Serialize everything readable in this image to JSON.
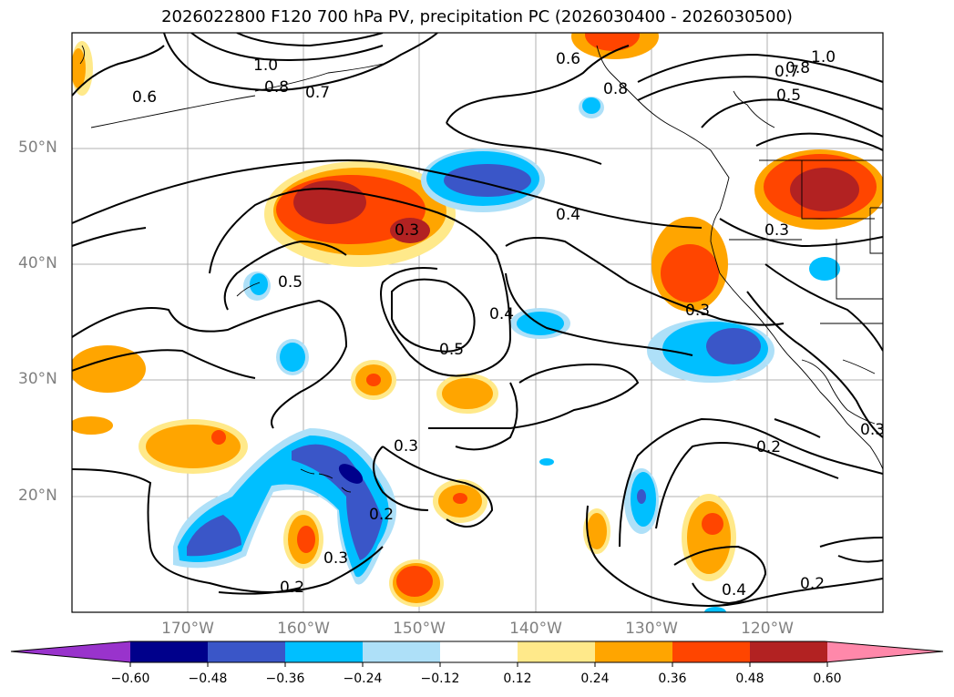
{
  "title": "2026022800 F120 700 hPa PV, precipitation PC (2026030400 - 2026030500)",
  "lat_labels": [
    "50°N",
    "40°N",
    "30°N",
    "20°N"
  ],
  "lon_labels": [
    "170°W",
    "160°W",
    "150°W",
    "140°W",
    "130°W",
    "120°W"
  ],
  "contour_labels": [
    {
      "text": "1.0"
    },
    {
      "text": "0.8"
    },
    {
      "text": "0.7"
    },
    {
      "text": "0.6"
    },
    {
      "text": "0.6"
    },
    {
      "text": "0.8"
    },
    {
      "text": "1.0"
    },
    {
      "text": "0.8"
    },
    {
      "text": "0.7"
    },
    {
      "text": "0.5"
    },
    {
      "text": "0.3"
    },
    {
      "text": "0.5"
    },
    {
      "text": "0.4"
    },
    {
      "text": "0.4"
    },
    {
      "text": "0.5"
    },
    {
      "text": "0.3"
    },
    {
      "text": "0.3"
    },
    {
      "text": "0.3"
    },
    {
      "text": "0.2"
    },
    {
      "text": "0.3"
    },
    {
      "text": "0.2"
    },
    {
      "text": "0.3"
    },
    {
      "text": "0.2"
    },
    {
      "text": "0.4"
    },
    {
      "text": "0.2"
    }
  ],
  "colorbar": {
    "tick_labels": [
      "−0.60",
      "−0.48",
      "−0.36",
      "−0.24",
      "−0.12",
      "0.12",
      "0.24",
      "0.36",
      "0.48",
      "0.60"
    ],
    "colors": [
      "#9933cc",
      "#00008b",
      "#3a56c8",
      "#00bfff",
      "#aee0f8",
      "#ffffff",
      "#ffe98a",
      "#ffa500",
      "#ff4500",
      "#b22222",
      "#ff88aa"
    ]
  }
}
